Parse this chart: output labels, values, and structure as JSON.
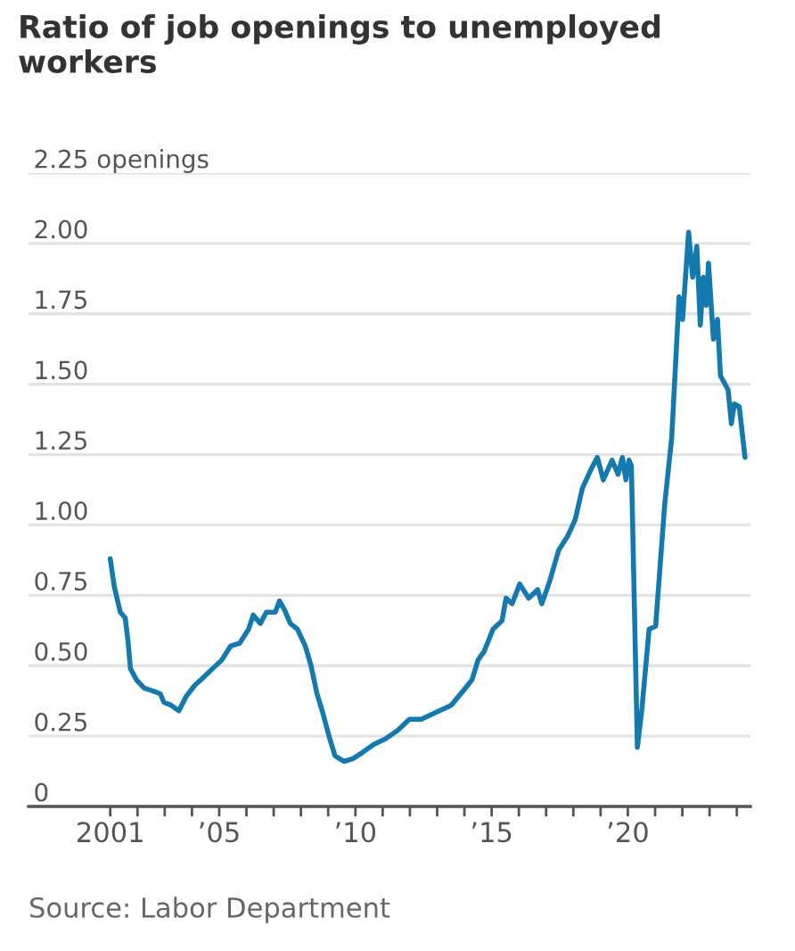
{
  "chart_data": {
    "type": "line",
    "title": "Ratio of job openings to unemployed workers",
    "annotations": [
      "Source: Labor Department"
    ],
    "series": [
      {
        "color": "#1479ae",
        "x": [
          2001.0,
          2001.15,
          2001.37,
          2001.55,
          2001.66,
          2001.74,
          2001.96,
          2002.25,
          2002.58,
          2002.84,
          2002.97,
          2003.23,
          2003.52,
          2003.78,
          2004.1,
          2004.44,
          2004.76,
          2005.09,
          2005.42,
          2005.75,
          2006.08,
          2006.25,
          2006.51,
          2006.73,
          2007.06,
          2007.21,
          2007.39,
          2007.61,
          2007.87,
          2008.16,
          2008.37,
          2008.59,
          2008.81,
          2009.03,
          2009.25,
          2009.58,
          2009.91,
          2010.23,
          2010.67,
          2011.1,
          2011.55,
          2011.98,
          2012.42,
          2013.08,
          2013.52,
          2013.95,
          2014.28,
          2014.5,
          2014.72,
          2015.05,
          2015.38,
          2015.53,
          2015.75,
          2016.03,
          2016.36,
          2016.69,
          2016.84,
          2017.13,
          2017.46,
          2017.79,
          2018.07,
          2018.33,
          2018.66,
          2018.88,
          2019.1,
          2019.42,
          2019.64,
          2019.8,
          2019.93,
          2020.04,
          2020.13,
          2020.35,
          2020.52,
          2020.78,
          2021.02,
          2021.35,
          2021.61,
          2021.88,
          2022.01,
          2022.23,
          2022.38,
          2022.53,
          2022.66,
          2022.77,
          2022.88,
          2022.96,
          2023.14,
          2023.29,
          2023.4,
          2023.68,
          2023.8,
          2023.91,
          2024.09,
          2024.3
        ],
        "values": [
          0.88,
          0.78,
          0.69,
          0.67,
          0.58,
          0.49,
          0.45,
          0.42,
          0.41,
          0.4,
          0.37,
          0.36,
          0.34,
          0.39,
          0.43,
          0.46,
          0.49,
          0.52,
          0.57,
          0.58,
          0.63,
          0.68,
          0.65,
          0.69,
          0.69,
          0.73,
          0.7,
          0.65,
          0.63,
          0.57,
          0.5,
          0.4,
          0.33,
          0.25,
          0.18,
          0.16,
          0.17,
          0.19,
          0.22,
          0.24,
          0.27,
          0.31,
          0.31,
          0.34,
          0.36,
          0.41,
          0.45,
          0.52,
          0.55,
          0.63,
          0.66,
          0.74,
          0.72,
          0.79,
          0.74,
          0.77,
          0.72,
          0.8,
          0.91,
          0.96,
          1.02,
          1.13,
          1.2,
          1.24,
          1.16,
          1.23,
          1.18,
          1.24,
          1.16,
          1.23,
          1.21,
          0.21,
          0.35,
          0.63,
          0.64,
          1.07,
          1.31,
          1.81,
          1.73,
          2.04,
          1.88,
          1.99,
          1.71,
          1.88,
          1.78,
          1.93,
          1.66,
          1.73,
          1.53,
          1.48,
          1.36,
          1.43,
          1.42,
          1.24
        ]
      }
    ],
    "xlim": [
      1998,
      2024.5
    ],
    "xticks": [
      {
        "value": 2001,
        "label": "2001"
      },
      {
        "value": 2002,
        "label": null
      },
      {
        "value": 2003,
        "label": null
      },
      {
        "value": 2004,
        "label": null
      },
      {
        "value": 2005,
        "label": "’05"
      },
      {
        "value": 2006,
        "label": null
      },
      {
        "value": 2007,
        "label": null
      },
      {
        "value": 2008,
        "label": null
      },
      {
        "value": 2009,
        "label": null
      },
      {
        "value": 2010,
        "label": "’10"
      },
      {
        "value": 2011,
        "label": null
      },
      {
        "value": 2012,
        "label": null
      },
      {
        "value": 2013,
        "label": null
      },
      {
        "value": 2014,
        "label": null
      },
      {
        "value": 2015,
        "label": "’15"
      },
      {
        "value": 2016,
        "label": null
      },
      {
        "value": 2017,
        "label": null
      },
      {
        "value": 2018,
        "label": null
      },
      {
        "value": 2019,
        "label": null
      },
      {
        "value": 2020,
        "label": "’20"
      },
      {
        "value": 2021,
        "label": null
      },
      {
        "value": 2022,
        "label": null
      },
      {
        "value": 2023,
        "label": null
      },
      {
        "value": 2024,
        "label": null
      }
    ],
    "ylim": [
      0,
      2.25
    ],
    "yticks": [
      0,
      {
        "value": 0.25,
        "label": "0.25"
      },
      {
        "value": 0.5,
        "label": "0.50"
      },
      {
        "value": 0.75,
        "label": "0.75"
      },
      {
        "value": 1,
        "label": "1.00"
      },
      {
        "value": 1.25,
        "label": "1.25"
      },
      {
        "value": 1.5,
        "label": "1.50"
      },
      {
        "value": 1.75,
        "label": "1.75"
      },
      {
        "value": 2,
        "label": "2.00"
      },
      {
        "value": 2.25,
        "label": "2.25 openings"
      }
    ],
    "grid": "y",
    "line_style": "solid",
    "marker": "none"
  }
}
